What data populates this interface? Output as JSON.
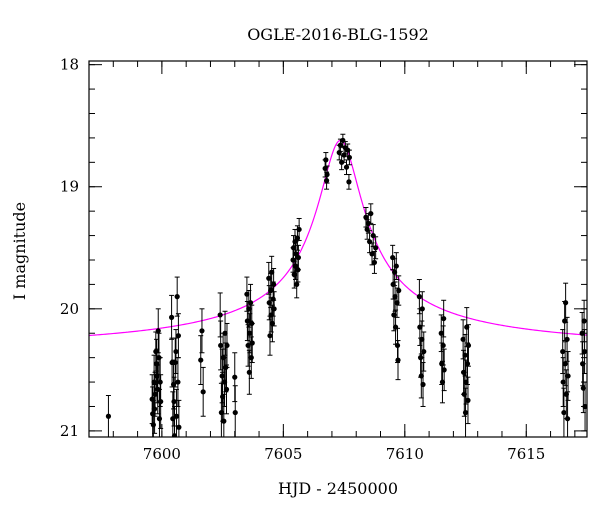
{
  "chart_data": {
    "type": "scatter",
    "title": "OGLE-2016-BLG-1592",
    "xlabel": "HJD - 2450000",
    "ylabel": "I magnitude",
    "xlim": [
      7597,
      7617.5
    ],
    "ylim": [
      21.05,
      17.97
    ],
    "y_inverted": true,
    "x_ticks": [
      7600,
      7605,
      7610,
      7615
    ],
    "y_ticks": [
      18,
      19,
      20,
      21
    ],
    "grid": false,
    "legend": "none",
    "colors": {
      "points": "#000000",
      "model": "#ff00ff"
    },
    "model": {
      "name": "",
      "t0": 7607.35,
      "peak_mag": 18.62,
      "baseline_mag": 20.37,
      "width_days": 0.9
    },
    "series": [
      {
        "values": [
          {
            "x": 7597.8,
            "y": 20.88,
            "e": 0.17
          },
          {
            "x": 7599.6,
            "y": 20.74,
            "e": 0.2
          },
          {
            "x": 7599.62,
            "y": 20.86,
            "e": 0.22
          },
          {
            "x": 7599.65,
            "y": 20.95,
            "e": 0.2
          },
          {
            "x": 7599.68,
            "y": 20.6,
            "e": 0.22
          },
          {
            "x": 7599.7,
            "y": 20.82,
            "e": 0.2
          },
          {
            "x": 7599.72,
            "y": 20.7,
            "e": 0.18
          },
          {
            "x": 7599.75,
            "y": 20.35,
            "e": 0.16
          },
          {
            "x": 7599.78,
            "y": 20.45,
            "e": 0.2
          },
          {
            "x": 7599.8,
            "y": 20.55,
            "e": 0.22
          },
          {
            "x": 7599.83,
            "y": 20.66,
            "e": 0.2
          },
          {
            "x": 7599.85,
            "y": 20.18,
            "e": 0.18
          },
          {
            "x": 7599.88,
            "y": 20.4,
            "e": 0.2
          },
          {
            "x": 7599.9,
            "y": 20.9,
            "e": 0.24
          },
          {
            "x": 7599.93,
            "y": 20.6,
            "e": 0.2
          },
          {
            "x": 7599.95,
            "y": 20.76,
            "e": 0.22
          },
          {
            "x": 7600.4,
            "y": 20.07,
            "e": 0.18
          },
          {
            "x": 7600.42,
            "y": 20.44,
            "e": 0.2
          },
          {
            "x": 7600.45,
            "y": 20.9,
            "e": 0.22
          },
          {
            "x": 7600.48,
            "y": 20.62,
            "e": 0.2
          },
          {
            "x": 7600.5,
            "y": 20.76,
            "e": 0.2
          },
          {
            "x": 7600.52,
            "y": 21.04,
            "e": 0.24
          },
          {
            "x": 7600.55,
            "y": 20.44,
            "e": 0.2
          },
          {
            "x": 7600.58,
            "y": 20.35,
            "e": 0.18
          },
          {
            "x": 7600.6,
            "y": 20.88,
            "e": 0.22
          },
          {
            "x": 7600.63,
            "y": 19.9,
            "e": 0.16
          },
          {
            "x": 7600.66,
            "y": 20.6,
            "e": 0.2
          },
          {
            "x": 7600.68,
            "y": 20.22,
            "e": 0.18
          },
          {
            "x": 7600.7,
            "y": 20.97,
            "e": 0.22
          },
          {
            "x": 7601.6,
            "y": 20.42,
            "e": 0.2
          },
          {
            "x": 7601.65,
            "y": 20.18,
            "e": 0.18
          },
          {
            "x": 7601.7,
            "y": 20.68,
            "e": 0.2
          },
          {
            "x": 7602.4,
            "y": 20.05,
            "e": 0.18
          },
          {
            "x": 7602.42,
            "y": 20.3,
            "e": 0.2
          },
          {
            "x": 7602.45,
            "y": 20.85,
            "e": 0.24
          },
          {
            "x": 7602.48,
            "y": 20.55,
            "e": 0.22
          },
          {
            "x": 7602.5,
            "y": 20.72,
            "e": 0.2
          },
          {
            "x": 7602.52,
            "y": 20.4,
            "e": 0.2
          },
          {
            "x": 7602.55,
            "y": 20.92,
            "e": 0.22
          },
          {
            "x": 7602.58,
            "y": 20.6,
            "e": 0.2
          },
          {
            "x": 7602.6,
            "y": 20.2,
            "e": 0.18
          },
          {
            "x": 7602.63,
            "y": 20.48,
            "e": 0.2
          },
          {
            "x": 7602.66,
            "y": 20.66,
            "e": 0.2
          },
          {
            "x": 7602.68,
            "y": 20.3,
            "e": 0.18
          },
          {
            "x": 7603.0,
            "y": 20.56,
            "e": 0.2
          },
          {
            "x": 7603.02,
            "y": 20.85,
            "e": 0.22
          },
          {
            "x": 7603.5,
            "y": 19.88,
            "e": 0.14
          },
          {
            "x": 7603.52,
            "y": 20.1,
            "e": 0.16
          },
          {
            "x": 7603.55,
            "y": 20.3,
            "e": 0.17
          },
          {
            "x": 7603.58,
            "y": 20.0,
            "e": 0.15
          },
          {
            "x": 7603.6,
            "y": 20.52,
            "e": 0.18
          },
          {
            "x": 7603.62,
            "y": 20.2,
            "e": 0.16
          },
          {
            "x": 7603.65,
            "y": 19.95,
            "e": 0.15
          },
          {
            "x": 7603.68,
            "y": 20.4,
            "e": 0.17
          },
          {
            "x": 7603.7,
            "y": 20.12,
            "e": 0.15
          },
          {
            "x": 7603.72,
            "y": 20.28,
            "e": 0.16
          },
          {
            "x": 7604.4,
            "y": 19.75,
            "e": 0.13
          },
          {
            "x": 7604.42,
            "y": 19.95,
            "e": 0.14
          },
          {
            "x": 7604.45,
            "y": 20.22,
            "e": 0.16
          },
          {
            "x": 7604.48,
            "y": 19.85,
            "e": 0.14
          },
          {
            "x": 7604.5,
            "y": 20.05,
            "e": 0.14
          },
          {
            "x": 7604.52,
            "y": 19.7,
            "e": 0.13
          },
          {
            "x": 7604.55,
            "y": 20.12,
            "e": 0.15
          },
          {
            "x": 7604.58,
            "y": 19.92,
            "e": 0.14
          },
          {
            "x": 7604.6,
            "y": 19.8,
            "e": 0.13
          },
          {
            "x": 7604.62,
            "y": 20.0,
            "e": 0.14
          },
          {
            "x": 7605.4,
            "y": 19.6,
            "e": 0.1
          },
          {
            "x": 7605.42,
            "y": 19.5,
            "e": 0.1
          },
          {
            "x": 7605.45,
            "y": 19.72,
            "e": 0.11
          },
          {
            "x": 7605.48,
            "y": 19.45,
            "e": 0.1
          },
          {
            "x": 7605.5,
            "y": 19.65,
            "e": 0.11
          },
          {
            "x": 7605.52,
            "y": 19.55,
            "e": 0.1
          },
          {
            "x": 7605.55,
            "y": 19.8,
            "e": 0.11
          },
          {
            "x": 7605.58,
            "y": 19.42,
            "e": 0.1
          },
          {
            "x": 7605.6,
            "y": 19.68,
            "e": 0.1
          },
          {
            "x": 7605.62,
            "y": 19.58,
            "e": 0.1
          },
          {
            "x": 7605.65,
            "y": 19.35,
            "e": 0.09
          },
          {
            "x": 7606.72,
            "y": 18.85,
            "e": 0.07
          },
          {
            "x": 7606.75,
            "y": 18.78,
            "e": 0.06
          },
          {
            "x": 7606.78,
            "y": 18.95,
            "e": 0.07
          },
          {
            "x": 7606.8,
            "y": 18.9,
            "e": 0.07
          },
          {
            "x": 7607.3,
            "y": 18.72,
            "e": 0.06
          },
          {
            "x": 7607.35,
            "y": 18.66,
            "e": 0.05
          },
          {
            "x": 7607.4,
            "y": 18.8,
            "e": 0.06
          },
          {
            "x": 7607.45,
            "y": 18.62,
            "e": 0.05
          },
          {
            "x": 7607.5,
            "y": 18.74,
            "e": 0.06
          },
          {
            "x": 7607.55,
            "y": 18.68,
            "e": 0.05
          },
          {
            "x": 7607.6,
            "y": 18.84,
            "e": 0.06
          },
          {
            "x": 7607.65,
            "y": 18.7,
            "e": 0.05
          },
          {
            "x": 7607.7,
            "y": 18.96,
            "e": 0.06
          },
          {
            "x": 7607.72,
            "y": 18.76,
            "e": 0.06
          },
          {
            "x": 7608.4,
            "y": 19.25,
            "e": 0.08
          },
          {
            "x": 7608.45,
            "y": 19.35,
            "e": 0.08
          },
          {
            "x": 7608.5,
            "y": 19.3,
            "e": 0.08
          },
          {
            "x": 7608.55,
            "y": 19.45,
            "e": 0.09
          },
          {
            "x": 7608.6,
            "y": 19.22,
            "e": 0.08
          },
          {
            "x": 7608.65,
            "y": 19.55,
            "e": 0.09
          },
          {
            "x": 7608.7,
            "y": 19.4,
            "e": 0.09
          },
          {
            "x": 7608.75,
            "y": 19.62,
            "e": 0.09
          },
          {
            "x": 7608.8,
            "y": 19.5,
            "e": 0.09
          },
          {
            "x": 7609.5,
            "y": 19.58,
            "e": 0.1
          },
          {
            "x": 7609.52,
            "y": 19.8,
            "e": 0.12
          },
          {
            "x": 7609.55,
            "y": 20.05,
            "e": 0.13
          },
          {
            "x": 7609.58,
            "y": 19.7,
            "e": 0.11
          },
          {
            "x": 7609.6,
            "y": 19.9,
            "e": 0.12
          },
          {
            "x": 7609.62,
            "y": 20.15,
            "e": 0.14
          },
          {
            "x": 7609.65,
            "y": 19.65,
            "e": 0.11
          },
          {
            "x": 7609.68,
            "y": 19.95,
            "e": 0.12
          },
          {
            "x": 7609.7,
            "y": 20.3,
            "e": 0.14
          },
          {
            "x": 7609.72,
            "y": 20.42,
            "e": 0.16
          },
          {
            "x": 7609.75,
            "y": 19.85,
            "e": 0.12
          },
          {
            "x": 7610.6,
            "y": 19.9,
            "e": 0.14
          },
          {
            "x": 7610.62,
            "y": 20.15,
            "e": 0.15
          },
          {
            "x": 7610.65,
            "y": 20.4,
            "e": 0.16
          },
          {
            "x": 7610.68,
            "y": 20.55,
            "e": 0.18
          },
          {
            "x": 7610.7,
            "y": 20.25,
            "e": 0.15
          },
          {
            "x": 7610.72,
            "y": 20.0,
            "e": 0.14
          },
          {
            "x": 7610.75,
            "y": 20.62,
            "e": 0.18
          },
          {
            "x": 7610.78,
            "y": 20.35,
            "e": 0.16
          },
          {
            "x": 7611.5,
            "y": 20.2,
            "e": 0.15
          },
          {
            "x": 7611.52,
            "y": 20.45,
            "e": 0.17
          },
          {
            "x": 7611.55,
            "y": 20.6,
            "e": 0.17
          },
          {
            "x": 7611.58,
            "y": 20.3,
            "e": 0.16
          },
          {
            "x": 7611.6,
            "y": 20.08,
            "e": 0.15
          },
          {
            "x": 7611.62,
            "y": 20.5,
            "e": 0.17
          },
          {
            "x": 7612.4,
            "y": 20.25,
            "e": 0.16
          },
          {
            "x": 7612.42,
            "y": 20.52,
            "e": 0.18
          },
          {
            "x": 7612.45,
            "y": 20.7,
            "e": 0.18
          },
          {
            "x": 7612.48,
            "y": 20.38,
            "e": 0.17
          },
          {
            "x": 7612.5,
            "y": 20.85,
            "e": 0.2
          },
          {
            "x": 7612.52,
            "y": 20.6,
            "e": 0.18
          },
          {
            "x": 7612.55,
            "y": 20.15,
            "e": 0.16
          },
          {
            "x": 7612.58,
            "y": 20.45,
            "e": 0.17
          },
          {
            "x": 7612.6,
            "y": 20.75,
            "e": 0.19
          },
          {
            "x": 7612.62,
            "y": 20.3,
            "e": 0.17
          },
          {
            "x": 7616.5,
            "y": 20.35,
            "e": 0.18
          },
          {
            "x": 7616.52,
            "y": 20.6,
            "e": 0.2
          },
          {
            "x": 7616.55,
            "y": 20.85,
            "e": 0.2
          },
          {
            "x": 7616.58,
            "y": 20.1,
            "e": 0.16
          },
          {
            "x": 7616.6,
            "y": 20.45,
            "e": 0.18
          },
          {
            "x": 7616.62,
            "y": 19.95,
            "e": 0.16
          },
          {
            "x": 7616.65,
            "y": 20.7,
            "e": 0.2
          },
          {
            "x": 7616.68,
            "y": 20.25,
            "e": 0.18
          },
          {
            "x": 7616.7,
            "y": 20.9,
            "e": 0.22
          },
          {
            "x": 7616.72,
            "y": 20.55,
            "e": 0.2
          },
          {
            "x": 7617.3,
            "y": 20.2,
            "e": 0.17
          },
          {
            "x": 7617.32,
            "y": 20.45,
            "e": 0.18
          },
          {
            "x": 7617.35,
            "y": 20.65,
            "e": 0.2
          },
          {
            "x": 7617.38,
            "y": 20.1,
            "e": 0.17
          },
          {
            "x": 7617.4,
            "y": 20.35,
            "e": 0.18
          },
          {
            "x": 7617.42,
            "y": 20.8,
            "e": 0.2
          }
        ]
      }
    ]
  }
}
